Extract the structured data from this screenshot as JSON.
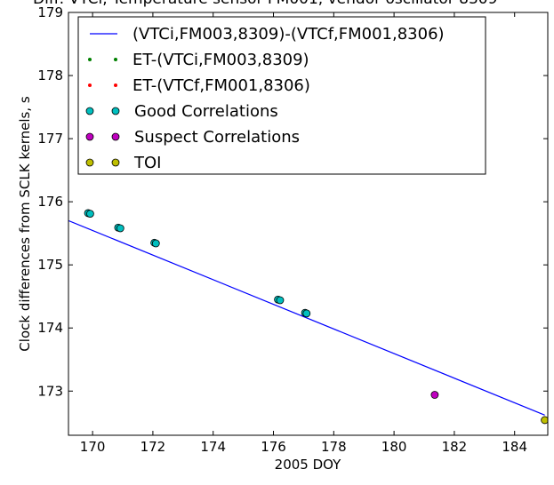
{
  "chart_data": {
    "type": "scatter",
    "title": "Diff: VTCi, Temperature sensor FM001, vendor oscillator 8309",
    "xlabel": "2005 DOY",
    "ylabel": "Clock differences from SCLK kernels, s",
    "xlim": [
      169.2,
      185.1
    ],
    "ylim": [
      172.3,
      179.0
    ],
    "xticks": [
      170,
      172,
      174,
      176,
      178,
      180,
      182,
      184
    ],
    "yticks": [
      173,
      174,
      175,
      176,
      177,
      178,
      179
    ],
    "grid": false,
    "legend_position": "top-left",
    "series": [
      {
        "name": "(VTCi,FM003,8309)-(VTCf,FM001,8306)",
        "kind": "line",
        "color": "#0000ff",
        "points": [
          [
            169.2,
            175.7
          ],
          [
            185.0,
            172.62
          ]
        ]
      },
      {
        "name": "ET-(VTCi,FM003,8309)",
        "kind": "point",
        "color": "#008000",
        "points": []
      },
      {
        "name": "ET-(VTCf,FM001,8306)",
        "kind": "point",
        "color": "#ff0000",
        "points": []
      },
      {
        "name": "Good Correlations",
        "kind": "marker",
        "color": "#00bfbf",
        "points": [
          [
            169.85,
            175.82
          ],
          [
            169.92,
            175.81
          ],
          [
            170.85,
            175.59
          ],
          [
            170.92,
            175.58
          ],
          [
            172.05,
            175.35
          ],
          [
            172.1,
            175.34
          ],
          [
            176.15,
            174.45
          ],
          [
            176.22,
            174.44
          ],
          [
            177.05,
            174.24
          ],
          [
            177.1,
            174.23
          ]
        ]
      },
      {
        "name": "Suspect Correlations",
        "kind": "marker",
        "color": "#bf00bf",
        "points": [
          [
            181.35,
            172.94
          ]
        ]
      },
      {
        "name": "TOI",
        "kind": "marker",
        "color": "#bfbf00",
        "points": [
          [
            185.0,
            172.54
          ]
        ]
      }
    ]
  }
}
